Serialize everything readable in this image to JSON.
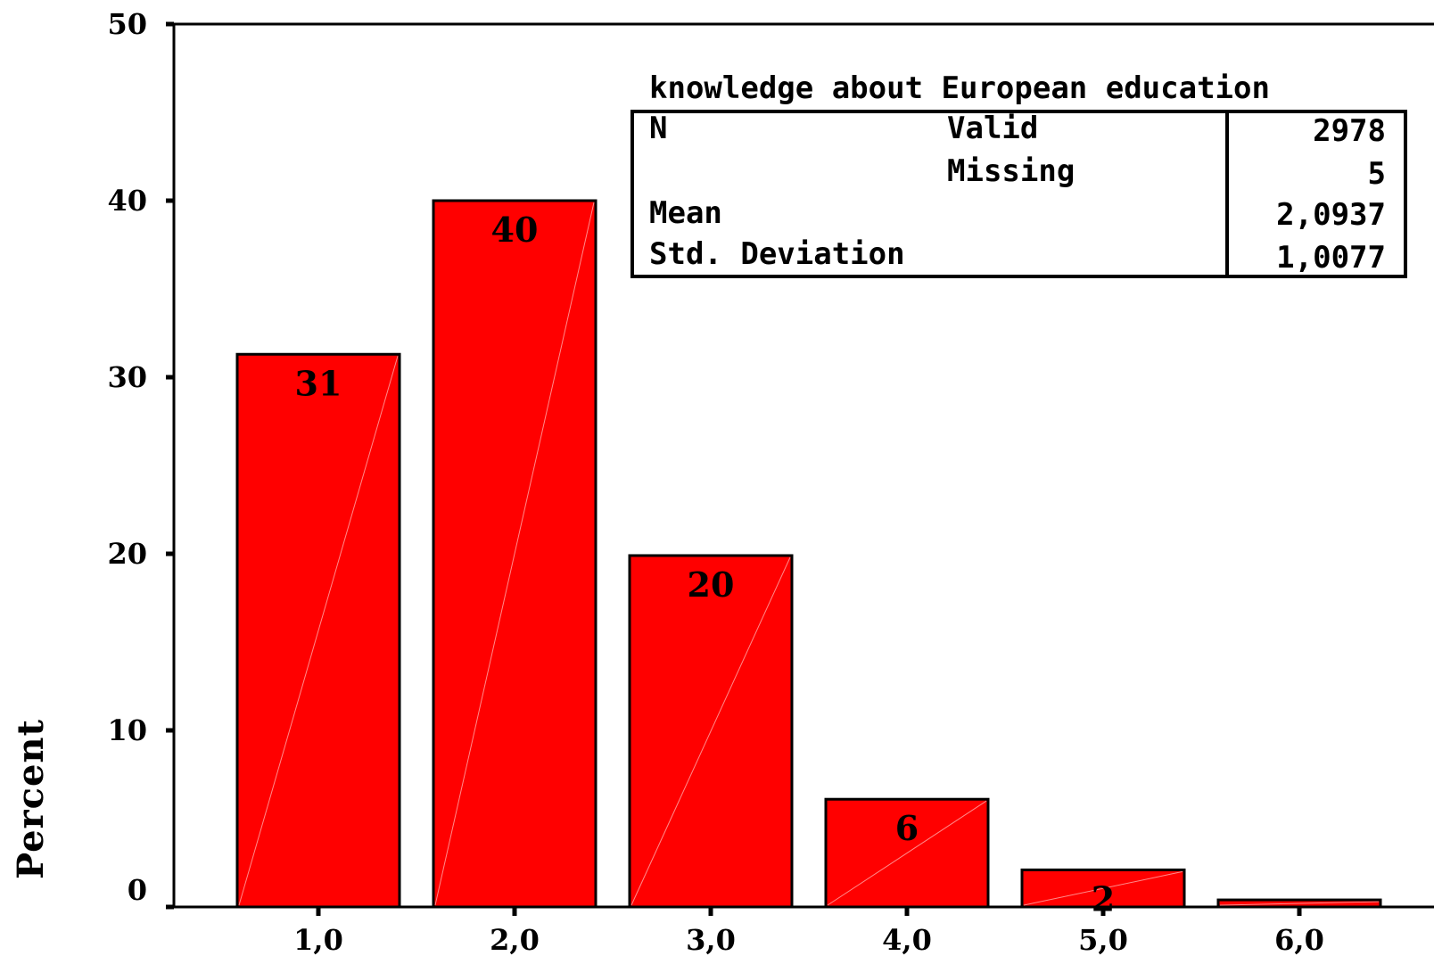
{
  "chart_data": {
    "type": "bar",
    "categories": [
      "1,0",
      "2,0",
      "3,0",
      "4,0",
      "5,0",
      "6,0"
    ],
    "values": [
      31.3,
      40.0,
      19.9,
      6.1,
      2.1,
      0.4
    ],
    "data_labels": [
      "31",
      "40",
      "20",
      "6",
      "2",
      ""
    ],
    "ylabel": "Percent",
    "xlabel": "",
    "ylim": [
      0,
      50
    ],
    "yticks": [
      "0",
      "10",
      "20",
      "30",
      "40",
      "50"
    ],
    "bar_color": "#ff0000",
    "grid": false
  },
  "stats_table": {
    "title": "knowledge about European education",
    "rows": [
      {
        "label": "N",
        "sublabel": "Valid",
        "value": "2978"
      },
      {
        "label": "",
        "sublabel": "Missing",
        "value": "5"
      },
      {
        "label": "Mean",
        "sublabel": "",
        "value": "2,0937"
      },
      {
        "label": "Std. Deviation",
        "sublabel": "",
        "value": "1,0077"
      }
    ]
  }
}
